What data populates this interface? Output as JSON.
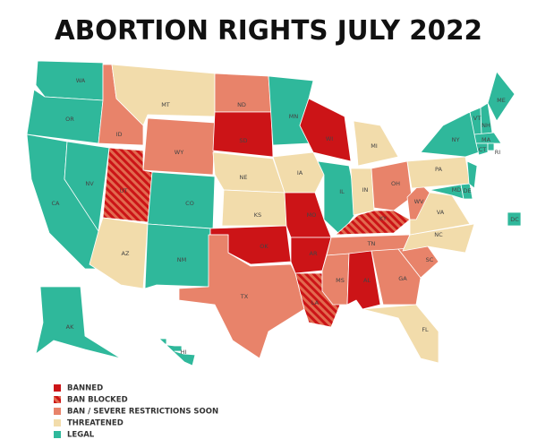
{
  "title": "ABORTION RIGHTS JULY 2022",
  "legend": [
    {
      "label": "BANNED",
      "color": "#cc1417"
    },
    {
      "label": "BAN BLOCKED",
      "color": "#e26a4f",
      "hatch": true
    },
    {
      "label": "BAN / SEVERE RESTRICTIONS SOON",
      "color": "#e8836a"
    },
    {
      "label": "THREATENED",
      "color": "#f2dcab"
    },
    {
      "label": "LEGAL",
      "color": "#2fb89b"
    }
  ],
  "states": [
    {
      "abbr": "WA",
      "status": 4
    },
    {
      "abbr": "OR",
      "status": 4
    },
    {
      "abbr": "CA",
      "status": 4
    },
    {
      "abbr": "NV",
      "status": 4
    },
    {
      "abbr": "ID",
      "status": 2
    },
    {
      "abbr": "MT",
      "status": 3
    },
    {
      "abbr": "WY",
      "status": 2
    },
    {
      "abbr": "UT",
      "status": 1
    },
    {
      "abbr": "CO",
      "status": 4
    },
    {
      "abbr": "AZ",
      "status": 3
    },
    {
      "abbr": "NM",
      "status": 4
    },
    {
      "abbr": "ND",
      "status": 2
    },
    {
      "abbr": "SD",
      "status": 0
    },
    {
      "abbr": "NE",
      "status": 3
    },
    {
      "abbr": "KS",
      "status": 3
    },
    {
      "abbr": "OK",
      "status": 0
    },
    {
      "abbr": "TX",
      "status": 2
    },
    {
      "abbr": "MN",
      "status": 4
    },
    {
      "abbr": "IA",
      "status": 3
    },
    {
      "abbr": "MO",
      "status": 0
    },
    {
      "abbr": "AR",
      "status": 0
    },
    {
      "abbr": "LA",
      "status": 1
    },
    {
      "abbr": "WI",
      "status": 0
    },
    {
      "abbr": "IL",
      "status": 4
    },
    {
      "abbr": "MI",
      "status": 3
    },
    {
      "abbr": "IN",
      "status": 3
    },
    {
      "abbr": "OH",
      "status": 2
    },
    {
      "abbr": "KY",
      "status": 1
    },
    {
      "abbr": "TN",
      "status": 2
    },
    {
      "abbr": "MS",
      "status": 2
    },
    {
      "abbr": "AL",
      "status": 0
    },
    {
      "abbr": "GA",
      "status": 2
    },
    {
      "abbr": "FL",
      "status": 3
    },
    {
      "abbr": "SC",
      "status": 2
    },
    {
      "abbr": "NC",
      "status": 3
    },
    {
      "abbr": "VA",
      "status": 3
    },
    {
      "abbr": "WV",
      "status": 2
    },
    {
      "abbr": "PA",
      "status": 3
    },
    {
      "abbr": "NY",
      "status": 4
    },
    {
      "abbr": "MD",
      "status": 4
    },
    {
      "abbr": "DE",
      "status": 4
    },
    {
      "status": 4
    },
    {
      "abbr": "VT",
      "status": 4
    },
    {
      "abbr": "NH",
      "status": 4
    },
    {
      "abbr": "ME",
      "status": 4
    },
    {
      "abbr": "MA",
      "status": 4
    },
    {
      "abbr": "CT",
      "status": 4
    },
    {
      "abbr": "RI",
      "status": 4
    },
    {
      "abbr": "DC",
      "status": 4
    },
    {
      "abbr": "AK",
      "status": 4
    },
    {
      "abbr": "HI",
      "status": 4
    }
  ]
}
